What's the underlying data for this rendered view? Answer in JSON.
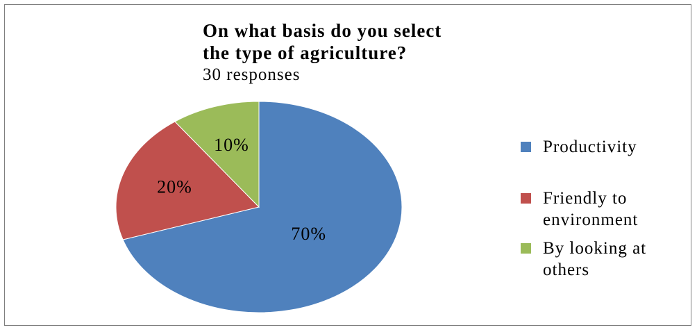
{
  "chart_data": {
    "type": "pie",
    "title_lines": [
      "On what basis do you select",
      "the type of agriculture?"
    ],
    "subtitle": "30 responses",
    "slices": [
      {
        "name": "Productivity",
        "label_lines": [
          "Productivity"
        ],
        "value": 70,
        "display": "70%",
        "color": "#4f81bd"
      },
      {
        "name": "Friendly to environment",
        "label_lines": [
          "Friendly to",
          "environment"
        ],
        "value": 20,
        "display": "20%",
        "color": "#c0504d"
      },
      {
        "name": "By looking at others",
        "label_lines": [
          "By looking at",
          "others"
        ],
        "value": 10,
        "display": "10%",
        "color": "#9bbb59"
      }
    ],
    "start_angle": "12 o'clock",
    "direction": "clockwise",
    "legend_position": "right"
  }
}
